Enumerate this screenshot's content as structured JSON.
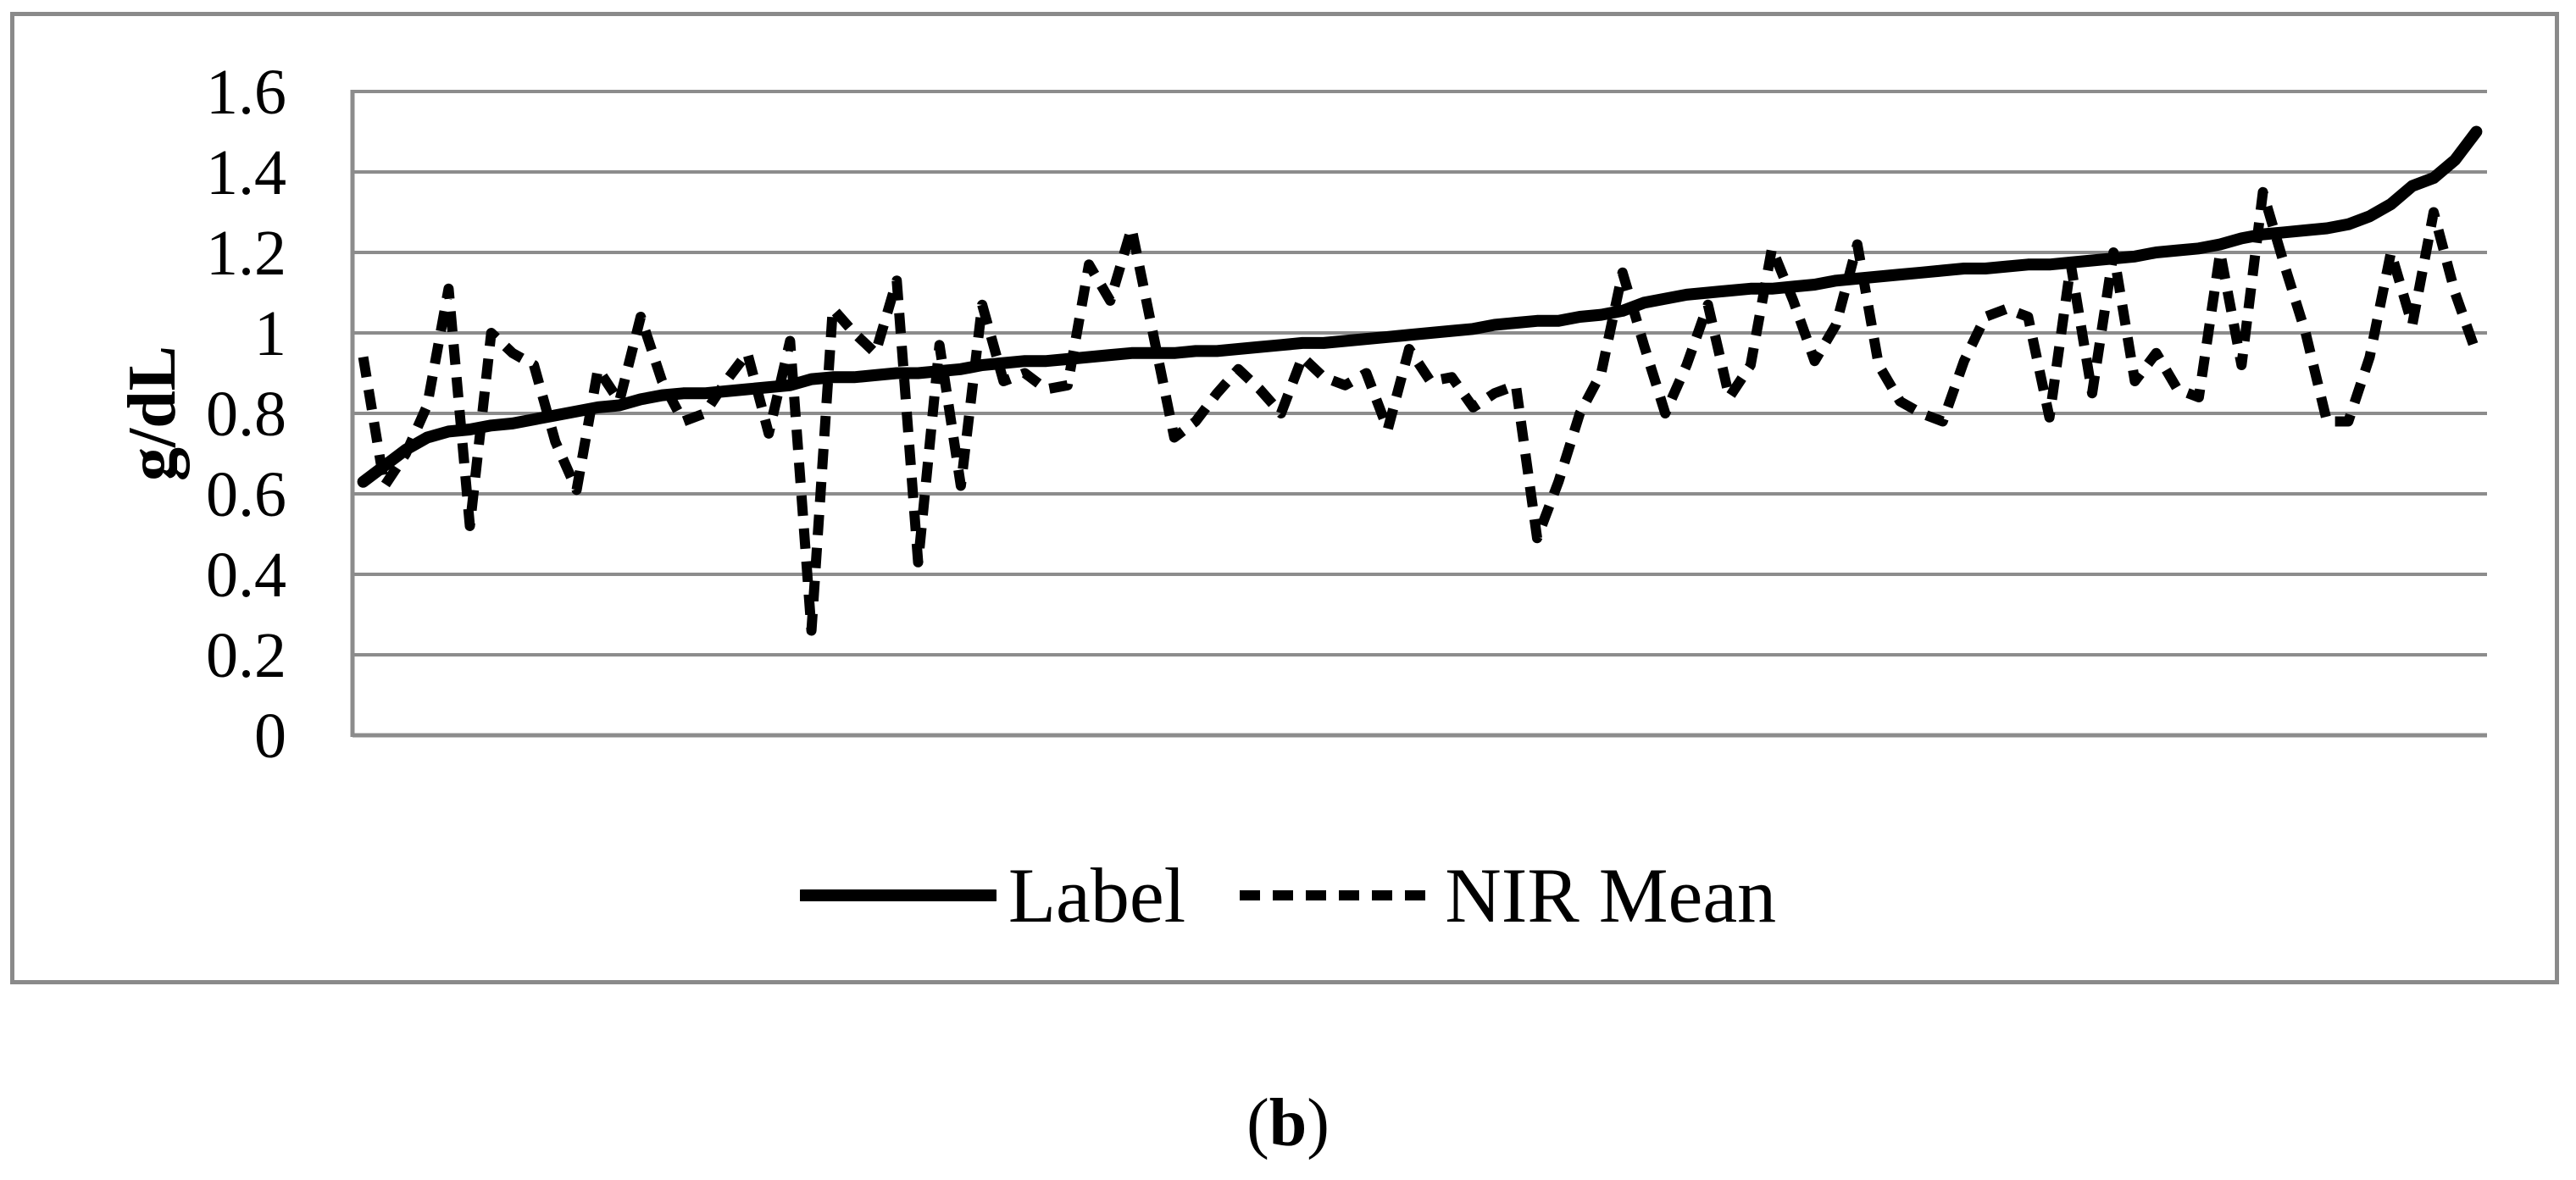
{
  "figure": {
    "caption": {
      "open": "(",
      "letter": "b",
      "close": ")"
    }
  },
  "colors": {
    "series_line": "#000000",
    "gridline": "#8c8c8c",
    "axis_line": "#8c8c8c",
    "figure_border": "#8a8a8a",
    "background": "#ffffff",
    "text": "#000000"
  },
  "legend": {
    "position": "bottom-center",
    "entries": [
      {
        "label": "Label",
        "line_style": "solid"
      },
      {
        "label": "NIR Mean",
        "line_style": "dashed"
      }
    ]
  },
  "chart_data": {
    "type": "line",
    "title": "",
    "xlabel": "",
    "ylabel": "g/dL",
    "ylim": [
      0,
      1.6
    ],
    "ytick_step": 0.2,
    "y_ticks": [
      "0",
      "0.2",
      "0.4",
      "0.6",
      "0.8",
      "1",
      "1.2",
      "1.4",
      "1.6"
    ],
    "x_axis": {
      "labels_visible": false,
      "n_points": 100
    },
    "grid": "horizontal",
    "legend_position": "bottom",
    "series": [
      {
        "name": "Label",
        "style": "solid",
        "color": "#000000",
        "values": [
          0.63,
          0.67,
          0.71,
          0.74,
          0.755,
          0.76,
          0.77,
          0.775,
          0.785,
          0.795,
          0.805,
          0.815,
          0.82,
          0.835,
          0.845,
          0.85,
          0.85,
          0.855,
          0.86,
          0.865,
          0.87,
          0.885,
          0.89,
          0.89,
          0.895,
          0.9,
          0.9,
          0.905,
          0.91,
          0.92,
          0.925,
          0.93,
          0.93,
          0.935,
          0.94,
          0.945,
          0.95,
          0.95,
          0.95,
          0.955,
          0.955,
          0.96,
          0.965,
          0.97,
          0.975,
          0.975,
          0.98,
          0.985,
          0.99,
          0.995,
          1.0,
          1.005,
          1.01,
          1.02,
          1.025,
          1.03,
          1.03,
          1.04,
          1.045,
          1.055,
          1.075,
          1.085,
          1.095,
          1.1,
          1.105,
          1.11,
          1.11,
          1.115,
          1.12,
          1.13,
          1.135,
          1.14,
          1.145,
          1.15,
          1.155,
          1.16,
          1.16,
          1.165,
          1.17,
          1.17,
          1.175,
          1.18,
          1.185,
          1.19,
          1.2,
          1.205,
          1.21,
          1.22,
          1.235,
          1.245,
          1.25,
          1.255,
          1.26,
          1.27,
          1.29,
          1.32,
          1.365,
          1.385,
          1.43,
          1.5
        ]
      },
      {
        "name": "NIR Mean",
        "style": "dashed",
        "color": "#000000",
        "values": [
          0.94,
          0.62,
          0.7,
          0.82,
          1.11,
          0.52,
          1.0,
          0.95,
          0.92,
          0.73,
          0.61,
          0.91,
          0.83,
          1.04,
          0.88,
          0.78,
          0.8,
          0.88,
          0.95,
          0.75,
          0.98,
          0.26,
          1.06,
          1.0,
          0.95,
          1.13,
          0.43,
          0.97,
          0.62,
          1.07,
          0.88,
          0.9,
          0.86,
          0.87,
          1.17,
          1.08,
          1.26,
          1.0,
          0.74,
          0.78,
          0.85,
          0.91,
          0.86,
          0.8,
          0.94,
          0.89,
          0.87,
          0.9,
          0.76,
          0.96,
          0.88,
          0.89,
          0.815,
          0.85,
          0.87,
          0.49,
          0.63,
          0.8,
          0.9,
          1.15,
          0.97,
          0.8,
          0.92,
          1.07,
          0.84,
          0.92,
          1.21,
          1.08,
          0.93,
          1.02,
          1.22,
          0.92,
          0.83,
          0.8,
          0.78,
          0.93,
          1.04,
          1.06,
          1.04,
          0.79,
          1.17,
          0.85,
          1.2,
          0.88,
          0.95,
          0.86,
          0.84,
          1.2,
          0.92,
          1.35,
          1.17,
          1.0,
          0.78,
          0.78,
          0.94,
          1.2,
          1.02,
          1.3,
          1.1,
          0.95
        ]
      }
    ]
  }
}
